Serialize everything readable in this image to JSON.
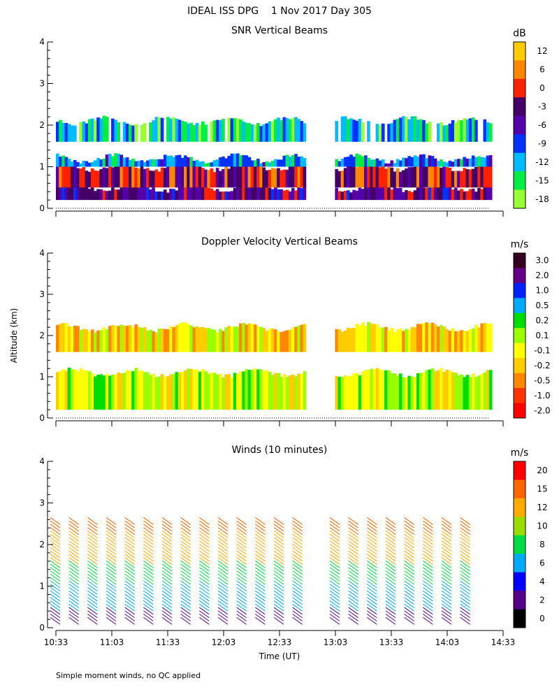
{
  "header": {
    "title": "IDEAL ISS DPG    1 Nov 2017 Day 305",
    "footnote": "Simple moment winds, no QC applied"
  },
  "axes": {
    "ylabel": "Altitude (km)",
    "xlabel": "Time (UT)",
    "y_ticks": [
      "0",
      "1",
      "2",
      "3",
      "4"
    ],
    "x_ticks": [
      "10:33",
      "11:03",
      "11:33",
      "12:03",
      "12:33",
      "13:03",
      "13:33",
      "14:03",
      "14:33"
    ]
  },
  "chart_data": [
    {
      "type": "heatmap",
      "title": "SNR Vertical Beams",
      "colorbar_unit": "dB",
      "colorbar_ticks": [
        "12",
        "6",
        "0",
        "-3",
        "-6",
        "-9",
        "-12",
        "-15",
        "-18"
      ],
      "colorbar_colors": [
        "#ffcc00",
        "#ff8800",
        "#ff2200",
        "#440066",
        "#5500aa",
        "#0033ff",
        "#00bbff",
        "#00ee44",
        "#99ff33"
      ],
      "x_range": [
        "10:33",
        "14:33"
      ],
      "ylim": [
        0,
        4
      ],
      "data_gap": [
        "12:46",
        "13:02"
      ],
      "layers": [
        {
          "from_km": 0.2,
          "to_km": 0.5,
          "level_db": -6
        },
        {
          "from_km": 0.5,
          "to_km": 1.0,
          "level_db": -3
        },
        {
          "from_km": 1.0,
          "to_km": 1.2,
          "level_db": -12
        },
        {
          "from_km": 1.6,
          "to_km": 2.1,
          "level_db": -15
        }
      ]
    },
    {
      "type": "heatmap",
      "title": "Doppler Velocity Vertical Beams",
      "colorbar_unit": "m/s",
      "colorbar_ticks": [
        "3.0",
        "2.0",
        "1.0",
        "0.5",
        "0.2",
        "0.1",
        "-0.1",
        "-0.2",
        "-0.5",
        "-1.0",
        "-2.0"
      ],
      "colorbar_colors": [
        "#330022",
        "#660088",
        "#0022ff",
        "#00aaff",
        "#00dd00",
        "#99ff00",
        "#ffff00",
        "#ffcc00",
        "#ff8800",
        "#ff3300",
        "#ff0000"
      ],
      "x_range": [
        "10:33",
        "14:33"
      ],
      "ylim": [
        0,
        4
      ],
      "data_gap": [
        "12:46",
        "13:02"
      ],
      "layers": [
        {
          "from_km": 0.2,
          "to_km": 1.1,
          "level": "-0.1"
        },
        {
          "from_km": 1.6,
          "to_km": 2.2,
          "level": "-0.2"
        }
      ]
    },
    {
      "type": "scatter",
      "title": "Winds (10 minutes)",
      "colorbar_unit": "m/s",
      "colorbar_ticks": [
        "20",
        "15",
        "12",
        "10",
        "8",
        "6",
        "4",
        "2",
        "0"
      ],
      "colorbar_colors": [
        "#ff0000",
        "#ff6600",
        "#ffaa00",
        "#99dd00",
        "#00dd44",
        "#00aaff",
        "#0000ff",
        "#550088",
        "#000000"
      ],
      "x_range": [
        "10:33",
        "14:33"
      ],
      "ylim": [
        0,
        4
      ],
      "profile_times": [
        "10:33",
        "10:43",
        "10:53",
        "11:03",
        "11:13",
        "11:23",
        "11:33",
        "11:43",
        "11:53",
        "12:03",
        "12:13",
        "12:23",
        "12:33",
        "12:43",
        "12:53",
        "13:03",
        "13:13",
        "13:23",
        "13:33",
        "13:43",
        "13:53",
        "14:03",
        "14:13"
      ],
      "missing_profiles": [
        "12:53"
      ],
      "speed_by_altitude": [
        {
          "from_km": 0.0,
          "to_km": 0.4,
          "speed_ms": 3
        },
        {
          "from_km": 0.4,
          "to_km": 1.0,
          "speed_ms": 6
        },
        {
          "from_km": 1.0,
          "to_km": 1.5,
          "speed_ms": 8
        },
        {
          "from_km": 1.5,
          "to_km": 2.2,
          "speed_ms": 12
        },
        {
          "from_km": 2.2,
          "to_km": 2.6,
          "speed_ms": 15
        }
      ]
    }
  ]
}
